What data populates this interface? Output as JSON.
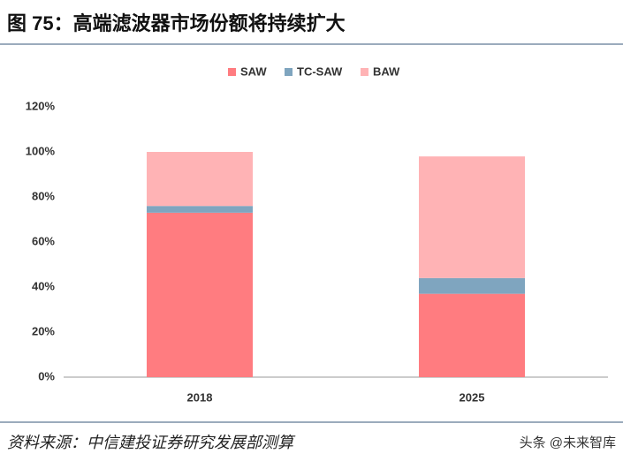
{
  "title": "图 75：高端滤波器市场份额将持续扩大",
  "source": "资料来源：中信建投证券研究发展部测算",
  "watermark": "头条 @未来智库",
  "chart_data": {
    "type": "stacked-bar",
    "categories": [
      "2018",
      "2025"
    ],
    "series": [
      {
        "name": "SAW",
        "color": "#ff7c80",
        "values": [
          73,
          37
        ]
      },
      {
        "name": "TC-SAW",
        "color": "#7fa5bf",
        "values": [
          3,
          7
        ]
      },
      {
        "name": "BAW",
        "color": "#ffb3b5",
        "values": [
          24,
          54
        ]
      }
    ],
    "ylim": [
      0,
      120
    ],
    "yticks": [
      {
        "value": 0,
        "label": "0%"
      },
      {
        "value": 20,
        "label": "20%"
      },
      {
        "value": 40,
        "label": "40%"
      },
      {
        "value": 60,
        "label": "60%"
      },
      {
        "value": 80,
        "label": "80%"
      },
      {
        "value": 100,
        "label": "100%"
      },
      {
        "value": 120,
        "label": "120%"
      }
    ],
    "legend": "top"
  }
}
